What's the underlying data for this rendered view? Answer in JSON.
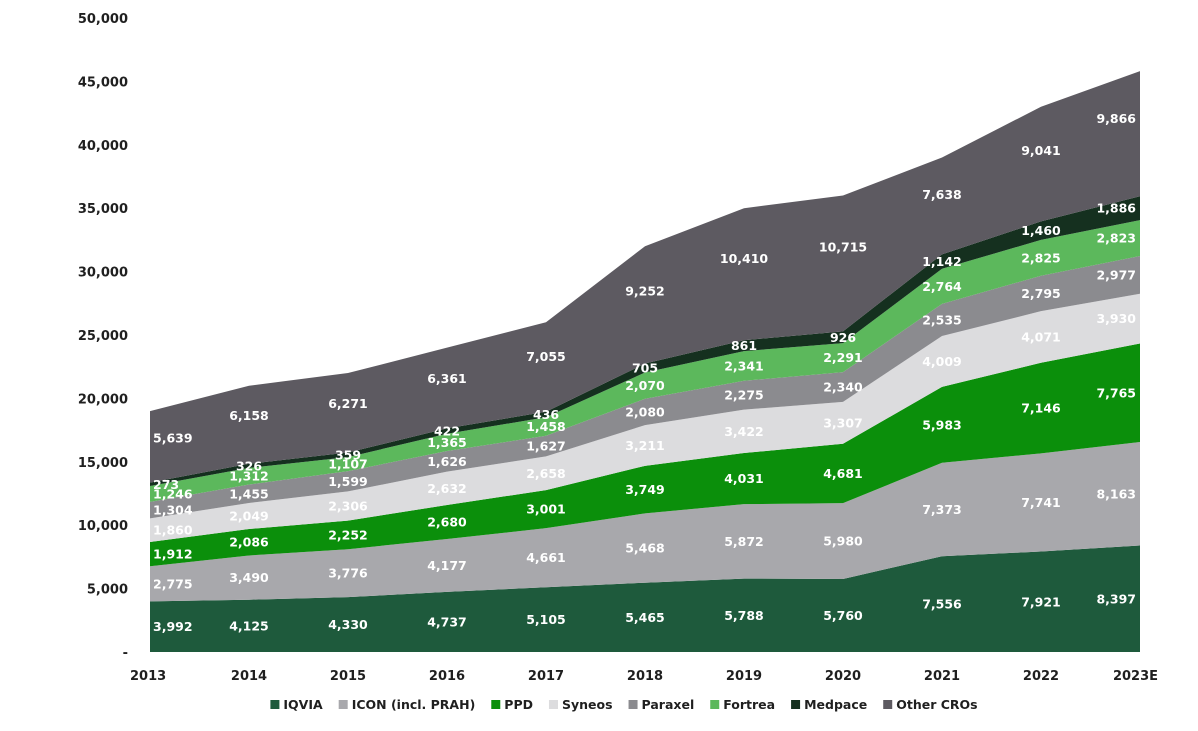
{
  "chart_data": {
    "type": "area",
    "stacked": true,
    "x": [
      "2013",
      "2014",
      "2015",
      "2016",
      "2017",
      "2018",
      "2019",
      "2020",
      "2021",
      "2022",
      "2023E"
    ],
    "ylim": [
      0,
      50000
    ],
    "yticks": [
      0,
      5000,
      10000,
      15000,
      20000,
      25000,
      30000,
      35000,
      40000,
      45000,
      50000
    ],
    "ytick_labels": [
      "-",
      "5,000",
      "10,000",
      "15,000",
      "20,000",
      "25,000",
      "30,000",
      "35,000",
      "40,000",
      "45,000",
      "50,000"
    ],
    "grid": false,
    "legend_position": "bottom",
    "series": [
      {
        "name": "IQVIA",
        "color": "#1e5a3c",
        "values": [
          3992,
          4125,
          4330,
          4737,
          5105,
          5465,
          5788,
          5760,
          7556,
          7921,
          8397
        ],
        "labels": [
          "3,992",
          "4,125",
          "4,330",
          "4,737",
          "5,105",
          "5,465",
          "5,788",
          "5,760",
          "7,556",
          "7,921",
          "8,397"
        ]
      },
      {
        "name": "ICON (incl. PRAH)",
        "color": "#a8a8ac",
        "values": [
          2775,
          3490,
          3776,
          4177,
          4661,
          5468,
          5872,
          5980,
          7373,
          7741,
          8163
        ],
        "labels": [
          "2,775",
          "3,490",
          "3,776",
          "4,177",
          "4,661",
          "5,468",
          "5,872",
          "5,980",
          "7,373",
          "7,741",
          "8,163"
        ]
      },
      {
        "name": "PPD",
        "color": "#0b8f0b",
        "values": [
          1912,
          2086,
          2252,
          2680,
          3001,
          3749,
          4031,
          4681,
          5983,
          7146,
          7765
        ],
        "labels": [
          "1,912",
          "2,086",
          "2,252",
          "2,680",
          "3,001",
          "3,749",
          "4,031",
          "4,681",
          "5,983",
          "7,146",
          "7,765"
        ]
      },
      {
        "name": "Syneos",
        "color": "#dcdcde",
        "values": [
          1860,
          2049,
          2306,
          2632,
          2658,
          3211,
          3422,
          3307,
          4009,
          4071,
          3930
        ],
        "labels": [
          "1,860",
          "2,049",
          "2,306",
          "2,632",
          "2,658",
          "3,211",
          "3,422",
          "3,307",
          "4,009",
          "4,071",
          "3,930"
        ]
      },
      {
        "name": "Paraxel",
        "color": "#8b8b8f",
        "values": [
          1304,
          1455,
          1599,
          1626,
          1627,
          2080,
          2275,
          2340,
          2535,
          2795,
          2977
        ],
        "labels": [
          "1,304",
          "1,455",
          "1,599",
          "1,626",
          "1,627",
          "2,080",
          "2,275",
          "2,340",
          "2,535",
          "2,795",
          "2,977"
        ]
      },
      {
        "name": "Fortrea",
        "color": "#5cb85c",
        "values": [
          1246,
          1312,
          1107,
          1365,
          1458,
          2070,
          2341,
          2291,
          2764,
          2825,
          2823
        ],
        "labels": [
          "1,246",
          "1,312",
          "1,107",
          "1,365",
          "1,458",
          "2,070",
          "2,341",
          "2,291",
          "2,764",
          "2,825",
          "2,823"
        ]
      },
      {
        "name": "Medpace",
        "color": "#15301f",
        "values": [
          273,
          326,
          359,
          422,
          436,
          705,
          861,
          926,
          1142,
          1460,
          1886
        ],
        "labels": [
          "273",
          "326",
          "359",
          "422",
          "436",
          "705",
          "861",
          "926",
          "1,142",
          "1,460",
          "1,886"
        ]
      },
      {
        "name": "Other CROs",
        "color": "#5d5a61",
        "values": [
          5639,
          6158,
          6271,
          6361,
          7055,
          9252,
          10410,
          10715,
          7638,
          9041,
          9866
        ],
        "labels": [
          "5,639",
          "6,158",
          "6,271",
          "6,361",
          "7,055",
          "9,252",
          "10,410",
          "10,715",
          "7,638",
          "9,041",
          "9,866"
        ]
      }
    ]
  }
}
